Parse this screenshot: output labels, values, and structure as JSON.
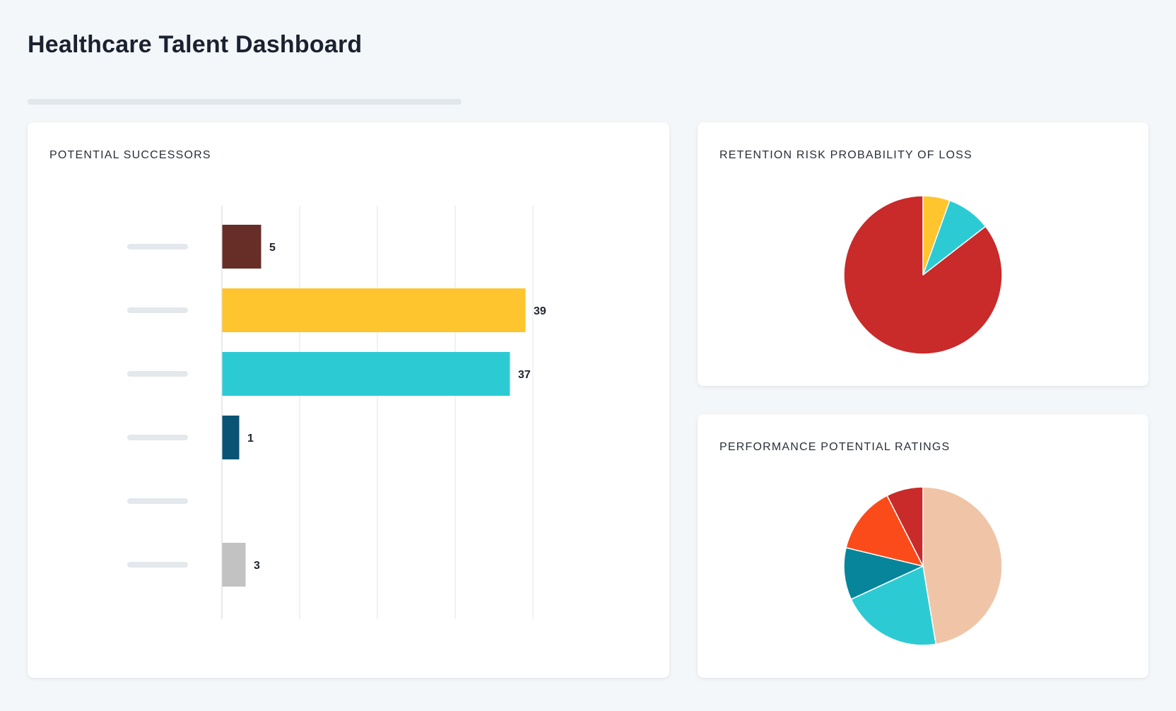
{
  "page": {
    "title": "Healthcare Talent Dashboard"
  },
  "chart_data": [
    {
      "type": "bar",
      "orientation": "horizontal",
      "title": "POTENTIAL SUCCESSORS",
      "categories": [
        "",
        "",
        "",
        "",
        "",
        ""
      ],
      "values": [
        5,
        39,
        37,
        1,
        0,
        3
      ],
      "colors": [
        "#662e26",
        "#ffc52e",
        "#2ccbd4",
        "#0a5374",
        "#cccccc",
        "#c2c2c2"
      ],
      "xlim": [
        0,
        50
      ],
      "grid": true,
      "xlabel": "",
      "ylabel": ""
    },
    {
      "type": "pie",
      "title": "RETENTION RISK PROBABILITY OF LOSS",
      "labels": [
        "",
        "",
        ""
      ],
      "values": [
        5.5,
        9,
        85.5
      ],
      "colors": [
        "#ffc52e",
        "#2ccbd4",
        "#c92a2a"
      ]
    },
    {
      "type": "pie",
      "title": "PERFORMANCE POTENTIAL RATINGS",
      "labels": [
        "",
        "",
        "",
        "",
        ""
      ],
      "values": [
        45.5,
        19.9,
        10.2,
        13.2,
        7.2
      ],
      "colors": [
        "#f0c5a7",
        "#2ccbd4",
        "#06859b",
        "#fc4b1a",
        "#c92a2a"
      ]
    }
  ]
}
